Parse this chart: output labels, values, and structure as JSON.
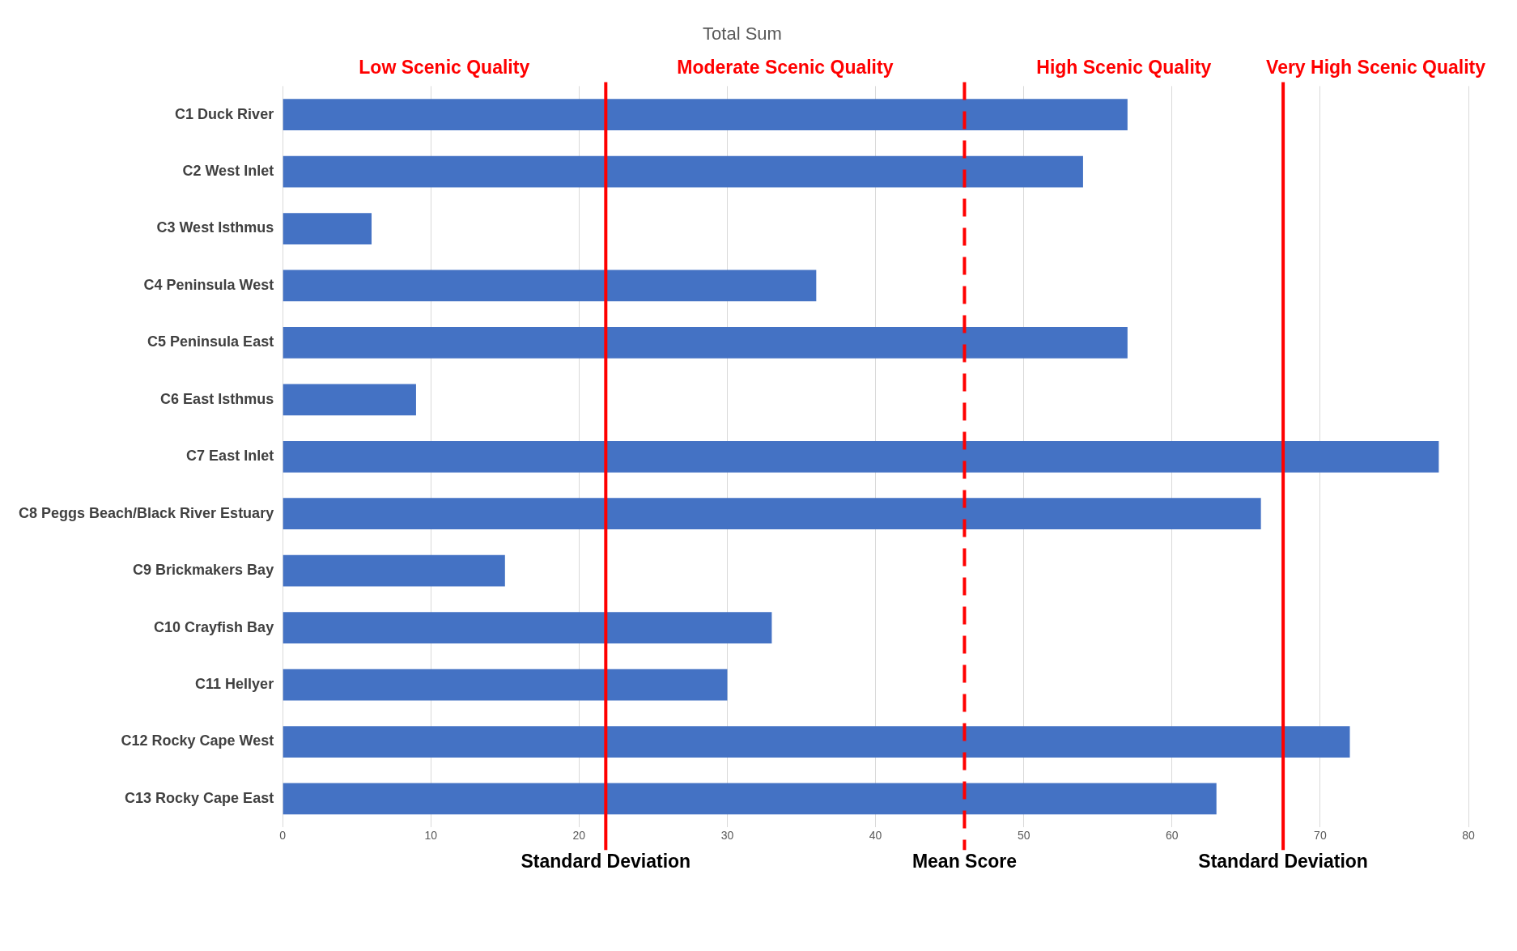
{
  "chart_data": {
    "type": "bar",
    "orientation": "horizontal",
    "title": "Total Sum",
    "categories": [
      "C1 Duck River",
      "C2 West Inlet",
      "C3 West Isthmus",
      "C4 Peninsula West",
      "C5 Peninsula East",
      "C6 East Isthmus",
      "C7 East Inlet",
      "C8 Peggs Beach/Black River Estuary",
      "C9 Brickmakers Bay",
      "C10 Crayfish Bay",
      "C11 Hellyer",
      "C12 Rocky Cape West",
      "C13 Rocky Cape East"
    ],
    "values": [
      57,
      54,
      6,
      36,
      57,
      9,
      78,
      66,
      15,
      33,
      30,
      72,
      63
    ],
    "color": "#4472c4",
    "xlim": [
      0,
      80
    ],
    "xticks": [
      0,
      10,
      20,
      30,
      40,
      50,
      60,
      70,
      80
    ],
    "grid": "x",
    "legend": false,
    "ref_lines": [
      {
        "axis": "x",
        "value": 21.8,
        "label": "Standard Deviation",
        "color": "#ff0000",
        "line_style": "solid"
      },
      {
        "axis": "x",
        "value": 46,
        "label": "Mean Score",
        "color": "#ff0000",
        "line_style": "dashed"
      },
      {
        "axis": "x",
        "value": 67.5,
        "label": "Standard Deviation",
        "color": "#ff0000",
        "line_style": "solid"
      }
    ],
    "annotations": [
      "Low Scenic Quality",
      "Moderate Scenic Quality",
      "High Scenic Quality",
      "Very High Scenic Quality"
    ]
  }
}
